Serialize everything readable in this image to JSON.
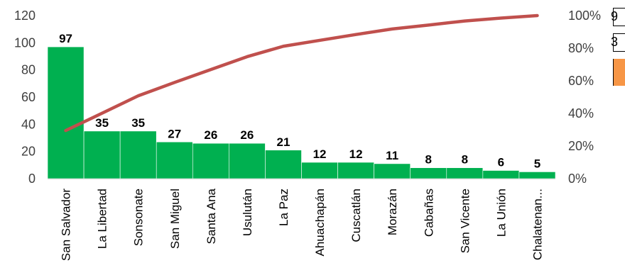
{
  "colors": {
    "bar": "#00b050",
    "bar_edge": "#ffffff",
    "line": "#c0504d",
    "axis": "#d9d9d9",
    "edge_accent": "#f79646"
  },
  "edge_cells": [
    "9",
    "3"
  ],
  "chart_data": {
    "type": "bar",
    "subtype": "pareto",
    "title": "",
    "xlabel": "",
    "ylabel": "",
    "categories": [
      "San Salvador",
      "La Libertad",
      "Sonsonate",
      "San Miguel",
      "Santa Ana",
      "Usulután",
      "La Paz",
      "Ahuachapán",
      "Cuscatlán",
      "Morazán",
      "Cabañas",
      "San Vicente",
      "La Unión",
      "Chalatenan..."
    ],
    "values": [
      97,
      35,
      35,
      27,
      26,
      26,
      21,
      12,
      12,
      11,
      8,
      8,
      6,
      5
    ],
    "data_labels": [
      "97",
      "35",
      "35",
      "27",
      "26",
      "26",
      "21",
      "12",
      "12",
      "11",
      "8",
      "8",
      "6",
      "5"
    ],
    "cumulative_percent": [
      29.5,
      40.1,
      50.8,
      59.0,
      66.9,
      74.8,
      81.2,
      84.8,
      88.4,
      91.8,
      94.2,
      96.7,
      98.5,
      100
    ],
    "ylim": [
      0,
      120
    ],
    "yticks": [
      "0",
      "20",
      "40",
      "60",
      "80",
      "100",
      "120"
    ],
    "y2lim": [
      0,
      100
    ],
    "y2ticks": [
      "0%",
      "20%",
      "40%",
      "60%",
      "80%",
      "100%"
    ],
    "grid": false,
    "legend": "none"
  }
}
